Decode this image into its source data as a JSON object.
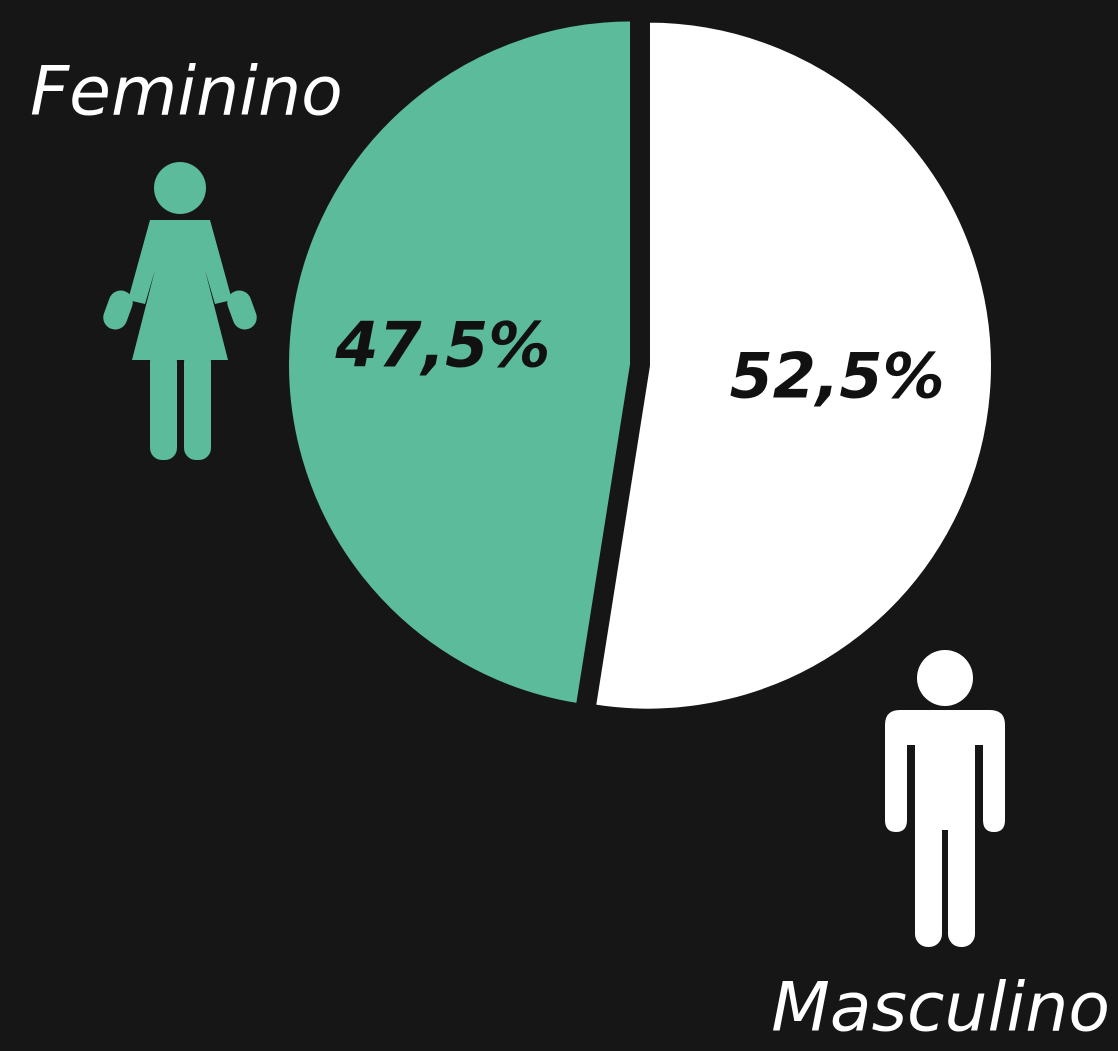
{
  "chart_data": {
    "type": "pie",
    "categories": [
      "Feminino",
      "Masculino"
    ],
    "values": [
      47.5,
      52.5
    ],
    "value_labels": [
      "47,5%",
      "52,5%"
    ],
    "colors": [
      "#5bbb9b",
      "#ffffff"
    ]
  }
}
